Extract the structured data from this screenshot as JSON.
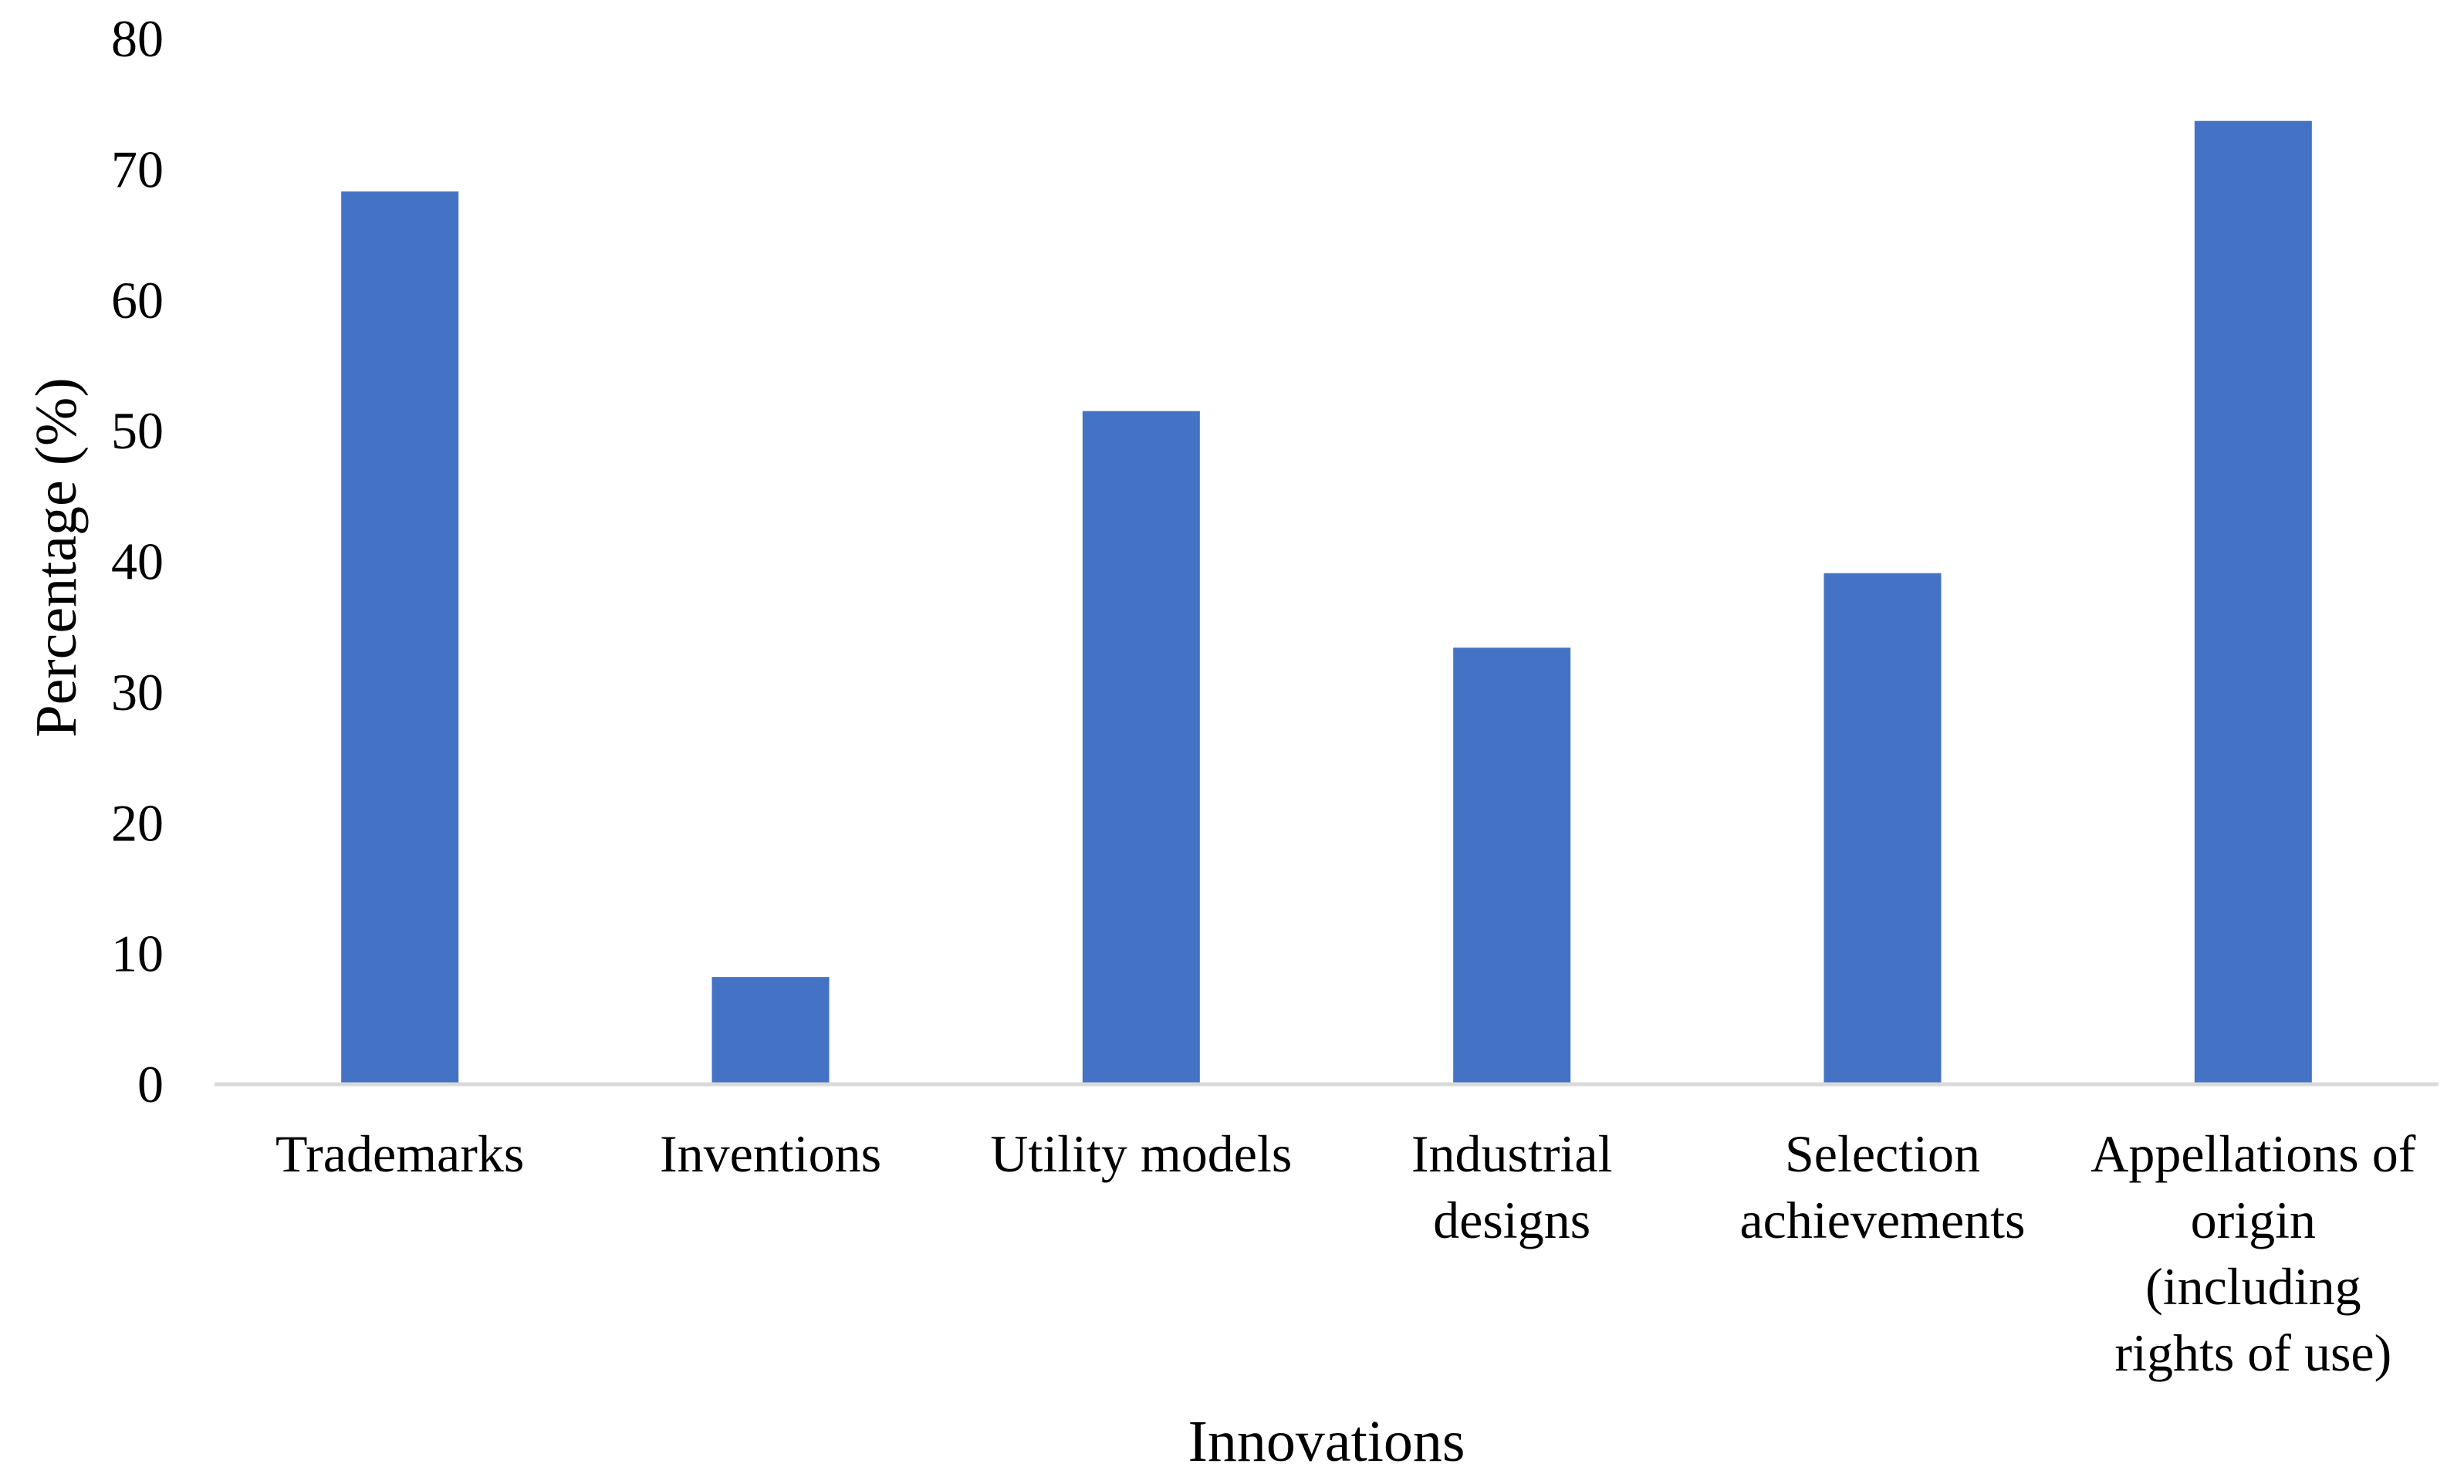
{
  "chart_data": {
    "type": "bar",
    "title": "",
    "xlabel": "Innovations",
    "ylabel": "Percentage (%)",
    "ylim": [
      0,
      80
    ],
    "yticks": [
      0,
      10,
      20,
      30,
      40,
      50,
      60,
      70,
      80
    ],
    "grid": false,
    "categories": [
      [
        "Trademarks"
      ],
      [
        "Inventions"
      ],
      [
        "Utility models"
      ],
      [
        "Industrial",
        "designs"
      ],
      [
        "Selection",
        "achievements"
      ],
      [
        "Appellations of",
        "origin",
        "(including",
        "rights of use)"
      ]
    ],
    "values": [
      68.3,
      8.2,
      51.5,
      33.4,
      39.1,
      73.7
    ],
    "bar_color": "#4472C4",
    "axis_color": "#D9D9D9"
  }
}
